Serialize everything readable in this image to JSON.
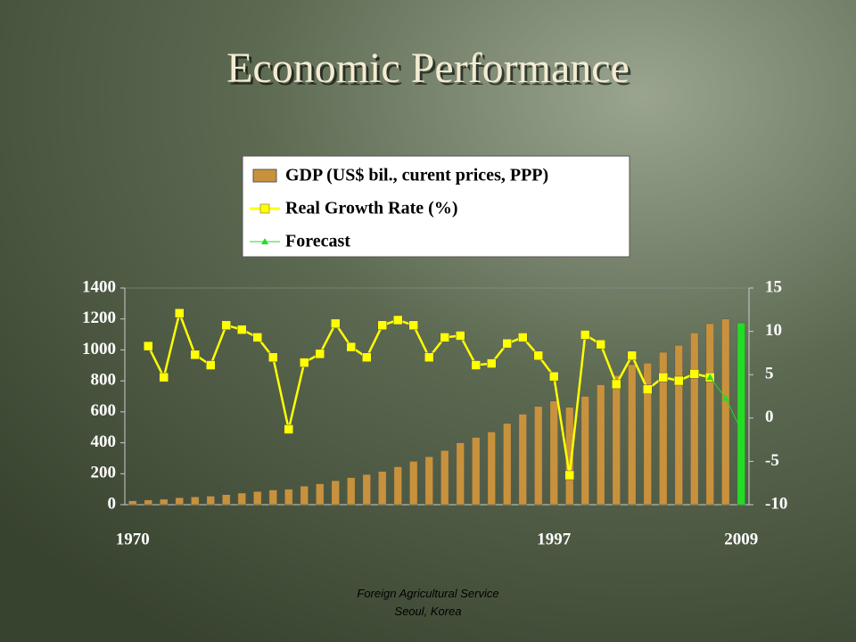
{
  "chart_data": {
    "type": "bar_line",
    "title": "Economic Performance",
    "footer": [
      "Foreign Agricultural Service",
      "Seoul, Korea"
    ],
    "categories": [
      "1970",
      null,
      null,
      null,
      null,
      null,
      null,
      null,
      null,
      null,
      null,
      null,
      null,
      null,
      null,
      null,
      null,
      null,
      null,
      null,
      null,
      null,
      null,
      null,
      null,
      null,
      null,
      "1997",
      null,
      null,
      null,
      null,
      null,
      null,
      null,
      null,
      null,
      null,
      null,
      "2009"
    ],
    "series": [
      {
        "name": "GDP (US$ bil., curent prices, PPP)",
        "type": "bar",
        "color": "#c8923c",
        "colors": [
          "#c8923c",
          "#c8923c",
          "#c8923c",
          "#c8923c",
          "#c8923c",
          "#c8923c",
          "#c8923c",
          "#c8923c",
          "#c8923c",
          "#c8923c",
          "#c8923c",
          "#c8923c",
          "#c8923c",
          "#c8923c",
          "#c8923c",
          "#c8923c",
          "#c8923c",
          "#c8923c",
          "#c8923c",
          "#c8923c",
          "#c8923c",
          "#c8923c",
          "#c8923c",
          "#c8923c",
          "#c8923c",
          "#c8923c",
          "#c8923c",
          "#c8923c",
          "#c8923c",
          "#c8923c",
          "#c8923c",
          "#c8923c",
          "#c8923c",
          "#c8923c",
          "#c8923c",
          "#c8923c",
          "#c8923c",
          "#c8923c",
          "#c8923c",
          "#22dd22"
        ],
        "values": [
          25,
          30,
          35,
          45,
          50,
          55,
          65,
          75,
          85,
          95,
          100,
          120,
          135,
          155,
          175,
          195,
          215,
          245,
          280,
          310,
          350,
          400,
          435,
          470,
          525,
          585,
          635,
          670,
          630,
          700,
          775,
          835,
          905,
          915,
          985,
          1030,
          1110,
          1170,
          1200,
          1175
        ]
      },
      {
        "name": "Real Growth Rate (%)",
        "type": "line",
        "axis": "y2",
        "color": "#ffff00",
        "marker": "square",
        "values": [
          null,
          8.3,
          4.7,
          12.1,
          7.3,
          6.1,
          10.7,
          10.2,
          9.3,
          7.0,
          -1.3,
          6.4,
          7.4,
          10.9,
          8.2,
          7.0,
          10.7,
          11.3,
          10.7,
          7.0,
          9.3,
          9.5,
          6.1,
          6.3,
          8.6,
          9.3,
          7.2,
          4.8,
          -6.6,
          9.6,
          8.5,
          3.9,
          7.2,
          3.3,
          4.7,
          4.3,
          5.1,
          4.7,
          null,
          null
        ]
      },
      {
        "name": "Forecast",
        "type": "line",
        "axis": "y2",
        "color": "#22dd22",
        "marker": "triangle",
        "values": [
          null,
          null,
          null,
          null,
          null,
          null,
          null,
          null,
          null,
          null,
          null,
          null,
          null,
          null,
          null,
          null,
          null,
          null,
          null,
          null,
          null,
          null,
          null,
          null,
          null,
          null,
          null,
          null,
          null,
          null,
          null,
          null,
          null,
          null,
          null,
          null,
          null,
          4.7,
          2.3,
          -1.4
        ]
      }
    ],
    "ylim": [
      0,
      1400
    ],
    "yticks": [
      0,
      200,
      400,
      600,
      800,
      1000,
      1200,
      1400
    ],
    "y2lim": [
      -10,
      15
    ],
    "y2ticks": [
      -10,
      -5,
      0,
      5,
      10,
      15
    ],
    "grid": false
  }
}
